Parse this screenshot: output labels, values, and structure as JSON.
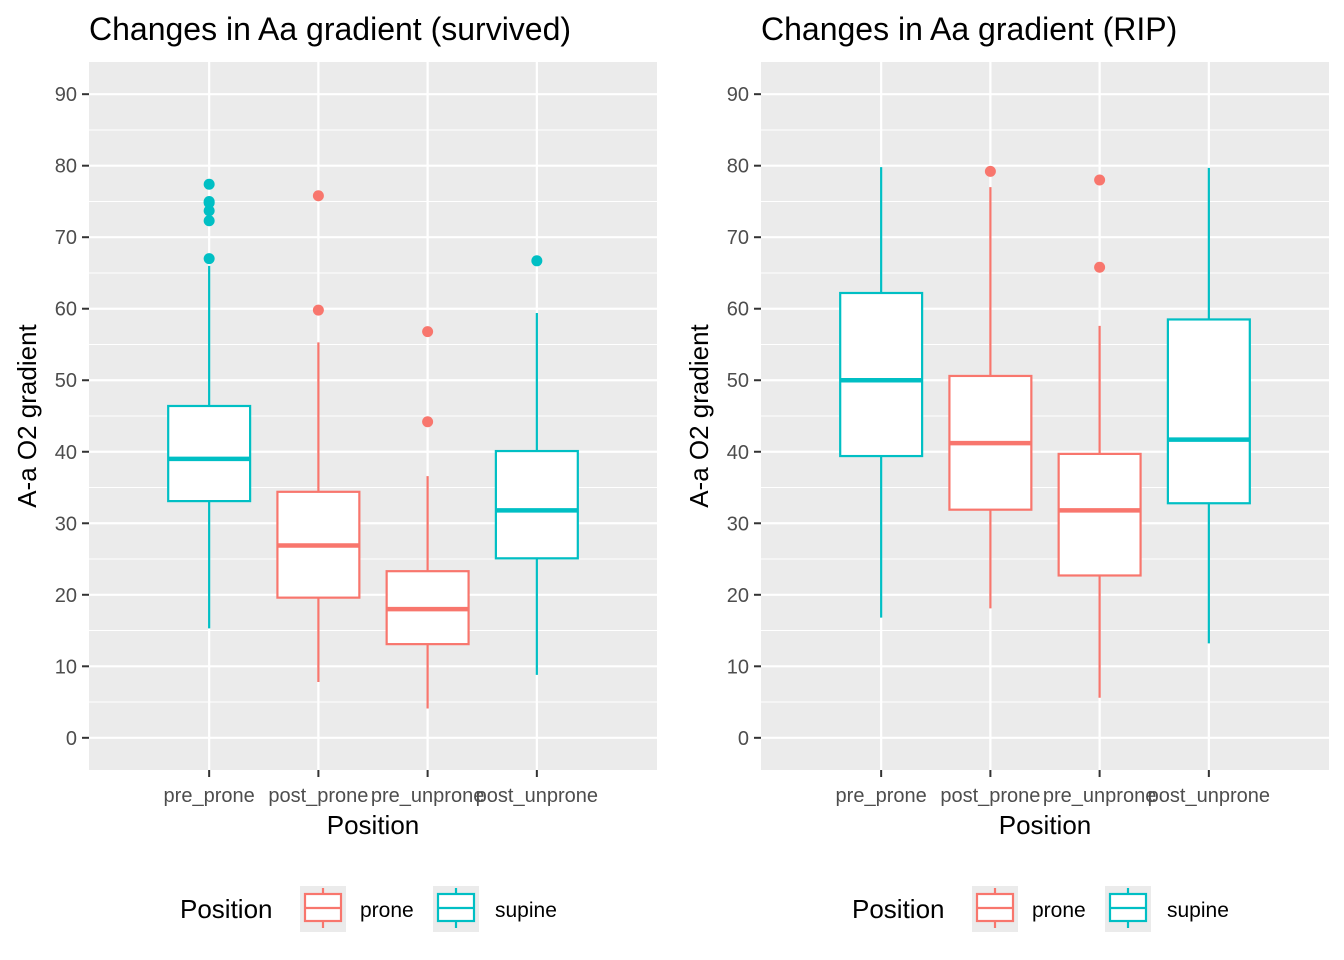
{
  "chart_data": [
    {
      "type": "box",
      "title": "Changes in Aa gradient (survived)",
      "xlabel": "Position",
      "ylabel": "A-a O2 gradient",
      "ylim": [
        -4.5,
        94.5
      ],
      "yticks": [
        0,
        10,
        20,
        30,
        40,
        50,
        60,
        70,
        80,
        90
      ],
      "grid": true,
      "legend": {
        "title": "Position",
        "position": "bottom",
        "entries": [
          {
            "label": "prone",
            "color": "#F8766D"
          },
          {
            "label": "supine",
            "color": "#00BFC4"
          }
        ]
      },
      "categories": [
        "pre_prone",
        "post_prone",
        "pre_unprone",
        "post_unprone"
      ],
      "boxes": [
        {
          "category": "pre_prone",
          "group": "supine",
          "whisker_low": 15.3,
          "q1": 33.1,
          "median": 39.0,
          "q3": 46.4,
          "whisker_high": 66.0,
          "outliers": [
            67.0,
            72.3,
            73.7,
            74.8,
            75.0,
            77.4
          ]
        },
        {
          "category": "post_prone",
          "group": "prone",
          "whisker_low": 7.8,
          "q1": 19.6,
          "median": 26.9,
          "q3": 34.4,
          "whisker_high": 55.3,
          "outliers": [
            59.8,
            75.8
          ]
        },
        {
          "category": "pre_unprone",
          "group": "prone",
          "whisker_low": 4.1,
          "q1": 13.1,
          "median": 18.0,
          "q3": 23.3,
          "whisker_high": 36.6,
          "outliers": [
            44.2,
            56.8
          ]
        },
        {
          "category": "post_unprone",
          "group": "supine",
          "whisker_low": 8.8,
          "q1": 25.1,
          "median": 31.8,
          "q3": 40.1,
          "whisker_high": 59.4,
          "outliers": [
            66.7
          ]
        }
      ]
    },
    {
      "type": "box",
      "title": "Changes in Aa gradient (RIP)",
      "xlabel": "Position",
      "ylabel": "A-a O2 gradient",
      "ylim": [
        -4.5,
        94.5
      ],
      "yticks": [
        0,
        10,
        20,
        30,
        40,
        50,
        60,
        70,
        80,
        90
      ],
      "grid": true,
      "legend": {
        "title": "Position",
        "position": "bottom",
        "entries": [
          {
            "label": "prone",
            "color": "#F8766D"
          },
          {
            "label": "supine",
            "color": "#00BFC4"
          }
        ]
      },
      "categories": [
        "pre_prone",
        "post_prone",
        "pre_unprone",
        "post_unprone"
      ],
      "boxes": [
        {
          "category": "pre_prone",
          "group": "supine",
          "whisker_low": 16.8,
          "q1": 39.4,
          "median": 50.0,
          "q3": 62.2,
          "whisker_high": 79.8,
          "outliers": []
        },
        {
          "category": "post_prone",
          "group": "prone",
          "whisker_low": 18.1,
          "q1": 31.9,
          "median": 41.2,
          "q3": 50.6,
          "whisker_high": 77.0,
          "outliers": [
            79.2
          ]
        },
        {
          "category": "pre_unprone",
          "group": "prone",
          "whisker_low": 5.6,
          "q1": 22.7,
          "median": 31.8,
          "q3": 39.7,
          "whisker_high": 57.6,
          "outliers": [
            65.8,
            78.0
          ]
        },
        {
          "category": "post_unprone",
          "group": "supine",
          "whisker_low": 13.2,
          "q1": 32.8,
          "median": 41.7,
          "q3": 58.5,
          "whisker_high": 79.7,
          "outliers": []
        }
      ]
    }
  ]
}
